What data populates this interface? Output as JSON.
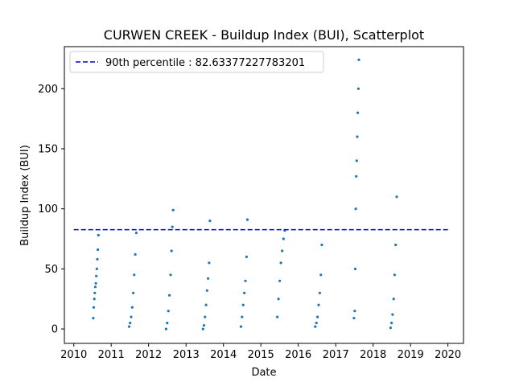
{
  "chart_data": {
    "type": "scatter",
    "title": "CURWEN CREEK - Buildup Index (BUI), Scatterplot",
    "xlabel": "Date",
    "ylabel": "Buildup Index (BUI)",
    "xlim": [
      "2009-10-01",
      "2020-06-01"
    ],
    "ylim": [
      -12,
      235
    ],
    "xticks": [
      "2010",
      "2011",
      "2012",
      "2013",
      "2014",
      "2015",
      "2016",
      "2017",
      "2018",
      "2019",
      "2020"
    ],
    "yticks": [
      0,
      50,
      100,
      150,
      200
    ],
    "legend_position": "top-left",
    "grid": false,
    "colors": {
      "points": "#1f77b4",
      "threshold": "#0000cd"
    },
    "threshold_line": {
      "label": "90th percentile : 82.63377227783201",
      "y": 82.63377227783201,
      "x_range": [
        "2010-01-01",
        "2020-01-01"
      ],
      "style": "dashed"
    },
    "series": [
      {
        "type": "scatter",
        "seasons": [
          {
            "x": [
              "2010-07-10",
              "2010-07-15",
              "2010-07-20",
              "2010-07-25",
              "2010-07-30",
              "2010-08-04",
              "2010-08-09",
              "2010-08-14",
              "2010-08-19",
              "2010-08-24",
              "2010-08-29"
            ],
            "y": [
              9,
              18,
              25,
              30,
              35,
              38,
              44,
              50,
              58,
              66,
              78
            ]
          },
          {
            "x": [
              "2011-06-25",
              "2011-07-05",
              "2011-07-15",
              "2011-07-25",
              "2011-08-04",
              "2011-08-14",
              "2011-08-24",
              "2011-09-03"
            ],
            "y": [
              2,
              5,
              10,
              18,
              30,
              45,
              62,
              80
            ]
          },
          {
            "x": [
              "2012-06-20",
              "2012-07-01",
              "2012-07-12",
              "2012-07-23",
              "2012-08-03",
              "2012-08-12",
              "2012-08-20",
              "2012-08-28"
            ],
            "y": [
              0,
              5,
              15,
              28,
              45,
              65,
              85,
              99
            ]
          },
          {
            "x": [
              "2013-06-15",
              "2013-06-25",
              "2013-07-05",
              "2013-07-15",
              "2013-07-25",
              "2013-08-04",
              "2013-08-14",
              "2013-08-22"
            ],
            "y": [
              0,
              3,
              10,
              20,
              32,
              42,
              55,
              90
            ]
          },
          {
            "x": [
              "2014-06-20",
              "2014-07-01",
              "2014-07-12",
              "2014-07-23",
              "2014-08-03",
              "2014-08-14",
              "2014-08-22"
            ],
            "y": [
              2,
              10,
              20,
              30,
              40,
              60,
              91
            ]
          },
          {
            "x": [
              "2015-06-10",
              "2015-06-22",
              "2015-07-04",
              "2015-07-16",
              "2015-07-28",
              "2015-08-10",
              "2015-08-22"
            ],
            "y": [
              10,
              25,
              40,
              55,
              65,
              75,
              82
            ]
          },
          {
            "x": [
              "2016-06-15",
              "2016-06-26",
              "2016-07-07",
              "2016-07-18",
              "2016-07-29",
              "2016-08-09",
              "2016-08-18"
            ],
            "y": [
              2,
              5,
              10,
              20,
              30,
              45,
              70
            ]
          },
          {
            "x": [
              "2017-06-28",
              "2017-07-05",
              "2017-07-10",
              "2017-07-15",
              "2017-07-20",
              "2017-07-25",
              "2017-07-30",
              "2017-08-04",
              "2017-08-10",
              "2017-08-15"
            ],
            "y": [
              9,
              15,
              50,
              100,
              127,
              140,
              160,
              180,
              200,
              224
            ]
          },
          {
            "x": [
              "2018-06-20",
              "2018-06-30",
              "2018-07-10",
              "2018-07-20",
              "2018-07-30",
              "2018-08-09",
              "2018-08-19"
            ],
            "y": [
              1,
              5,
              12,
              25,
              45,
              70,
              110
            ]
          }
        ]
      }
    ]
  }
}
